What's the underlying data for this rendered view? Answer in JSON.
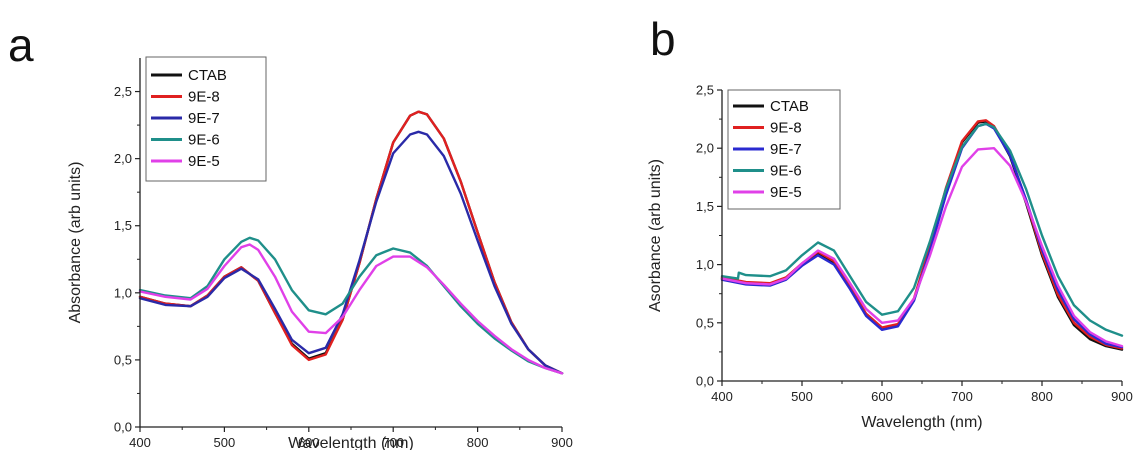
{
  "chart_data": [
    {
      "type": "line",
      "panel": "a",
      "xlabel": "Wavelentgth (nm)",
      "ylabel": "Absorbance (arb units)",
      "xlim": [
        400,
        900
      ],
      "ylim": [
        0.0,
        2.75
      ],
      "xticks": [
        "400",
        "500",
        "600",
        "700",
        "800",
        "900"
      ],
      "yticks": [
        "0,0",
        "0,5",
        "1,0",
        "1,5",
        "2,0",
        "2,5"
      ],
      "legend_position": "top-left",
      "series": [
        {
          "name": "CTAB",
          "color": "#111111",
          "x": [
            400,
            430,
            460,
            480,
            500,
            520,
            540,
            560,
            580,
            600,
            620,
            640,
            660,
            680,
            700,
            720,
            730,
            740,
            760,
            780,
            800,
            820,
            840,
            860,
            880,
            900
          ],
          "y": [
            0.97,
            0.92,
            0.9,
            0.98,
            1.12,
            1.19,
            1.09,
            0.85,
            0.62,
            0.51,
            0.55,
            0.8,
            1.22,
            1.7,
            2.12,
            2.32,
            2.35,
            2.33,
            2.15,
            1.83,
            1.45,
            1.08,
            0.78,
            0.58,
            0.46,
            0.4
          ]
        },
        {
          "name": "9E-8",
          "color": "#e02020",
          "x": [
            400,
            430,
            460,
            480,
            500,
            520,
            540,
            560,
            580,
            600,
            620,
            640,
            660,
            680,
            700,
            720,
            730,
            740,
            760,
            780,
            800,
            820,
            840,
            860,
            880,
            900
          ],
          "y": [
            0.97,
            0.92,
            0.9,
            0.98,
            1.12,
            1.19,
            1.09,
            0.85,
            0.61,
            0.5,
            0.54,
            0.8,
            1.22,
            1.7,
            2.12,
            2.32,
            2.35,
            2.33,
            2.15,
            1.83,
            1.45,
            1.08,
            0.78,
            0.58,
            0.46,
            0.4
          ]
        },
        {
          "name": "9E-7",
          "color": "#2a2aa8",
          "x": [
            400,
            430,
            460,
            480,
            500,
            520,
            540,
            560,
            580,
            600,
            620,
            640,
            660,
            680,
            700,
            720,
            730,
            740,
            760,
            780,
            800,
            820,
            840,
            860,
            880,
            900
          ],
          "y": [
            0.96,
            0.91,
            0.9,
            0.97,
            1.11,
            1.18,
            1.1,
            0.88,
            0.65,
            0.55,
            0.59,
            0.84,
            1.24,
            1.68,
            2.04,
            2.18,
            2.2,
            2.18,
            2.02,
            1.74,
            1.39,
            1.05,
            0.77,
            0.58,
            0.46,
            0.4
          ]
        },
        {
          "name": "9E-6",
          "color": "#1f8f8a",
          "x": [
            400,
            430,
            460,
            480,
            500,
            520,
            530,
            540,
            560,
            580,
            600,
            620,
            640,
            660,
            680,
            700,
            720,
            740,
            760,
            780,
            800,
            820,
            840,
            860,
            880,
            900
          ],
          "y": [
            1.02,
            0.98,
            0.96,
            1.05,
            1.25,
            1.38,
            1.41,
            1.39,
            1.25,
            1.02,
            0.87,
            0.84,
            0.92,
            1.12,
            1.28,
            1.33,
            1.3,
            1.2,
            1.05,
            0.9,
            0.77,
            0.66,
            0.57,
            0.49,
            0.44,
            0.4
          ]
        },
        {
          "name": "9E-5",
          "color": "#e040e8",
          "x": [
            400,
            430,
            460,
            480,
            500,
            520,
            530,
            540,
            560,
            580,
            600,
            620,
            640,
            660,
            680,
            700,
            720,
            740,
            760,
            780,
            800,
            820,
            840,
            860,
            880,
            900
          ],
          "y": [
            1.01,
            0.97,
            0.95,
            1.03,
            1.2,
            1.34,
            1.36,
            1.32,
            1.12,
            0.86,
            0.71,
            0.7,
            0.82,
            1.02,
            1.2,
            1.27,
            1.27,
            1.19,
            1.06,
            0.92,
            0.79,
            0.68,
            0.58,
            0.5,
            0.44,
            0.4
          ]
        }
      ]
    },
    {
      "type": "line",
      "panel": "b",
      "xlabel": "Wavelength (nm)",
      "ylabel": "Asorbance (arb units)",
      "xlim": [
        400,
        900
      ],
      "ylim": [
        0.0,
        2.5
      ],
      "xticks": [
        "400",
        "500",
        "600",
        "700",
        "800",
        "900"
      ],
      "yticks": [
        "0,0",
        "0,5",
        "1,0",
        "1,5",
        "2,0",
        "2,5"
      ],
      "legend_position": "top-left",
      "series": [
        {
          "name": "CTAB",
          "color": "#111111",
          "x": [
            400,
            430,
            460,
            480,
            500,
            520,
            540,
            560,
            580,
            600,
            620,
            640,
            660,
            680,
            700,
            720,
            730,
            740,
            760,
            780,
            800,
            820,
            840,
            860,
            880,
            900
          ],
          "y": [
            0.88,
            0.84,
            0.83,
            0.88,
            1.0,
            1.1,
            1.02,
            0.8,
            0.57,
            0.45,
            0.48,
            0.7,
            1.15,
            1.65,
            2.05,
            2.22,
            2.23,
            2.18,
            1.93,
            1.53,
            1.08,
            0.72,
            0.48,
            0.36,
            0.3,
            0.27
          ]
        },
        {
          "name": "9E-8",
          "color": "#e02020",
          "x": [
            400,
            430,
            460,
            480,
            500,
            520,
            540,
            560,
            580,
            600,
            620,
            640,
            660,
            680,
            700,
            720,
            730,
            740,
            760,
            780,
            800,
            820,
            840,
            860,
            880,
            900
          ],
          "y": [
            0.89,
            0.85,
            0.84,
            0.89,
            1.01,
            1.11,
            1.03,
            0.81,
            0.58,
            0.46,
            0.49,
            0.71,
            1.16,
            1.66,
            2.06,
            2.23,
            2.24,
            2.19,
            1.95,
            1.55,
            1.1,
            0.74,
            0.5,
            0.38,
            0.31,
            0.28
          ]
        },
        {
          "name": "9E-7",
          "color": "#2a2ad0",
          "x": [
            400,
            430,
            460,
            480,
            500,
            520,
            540,
            560,
            580,
            600,
            620,
            640,
            660,
            680,
            700,
            720,
            730,
            740,
            760,
            780,
            800,
            820,
            840,
            860,
            880,
            900
          ],
          "y": [
            0.87,
            0.83,
            0.82,
            0.87,
            0.99,
            1.08,
            1.0,
            0.79,
            0.56,
            0.44,
            0.47,
            0.69,
            1.12,
            1.6,
            2.0,
            2.19,
            2.21,
            2.17,
            1.94,
            1.56,
            1.13,
            0.78,
            0.53,
            0.4,
            0.32,
            0.29
          ]
        },
        {
          "name": "9E-6",
          "color": "#1f8f8a",
          "x": [
            400,
            420,
            421,
            430,
            460,
            480,
            500,
            520,
            540,
            560,
            580,
            600,
            620,
            640,
            660,
            680,
            700,
            720,
            730,
            740,
            760,
            780,
            800,
            820,
            840,
            860,
            880,
            900
          ],
          "y": [
            0.9,
            0.88,
            0.93,
            0.91,
            0.9,
            0.95,
            1.08,
            1.19,
            1.12,
            0.9,
            0.68,
            0.57,
            0.6,
            0.8,
            1.2,
            1.65,
            2.01,
            2.19,
            2.21,
            2.18,
            1.98,
            1.65,
            1.25,
            0.9,
            0.65,
            0.52,
            0.44,
            0.39
          ]
        },
        {
          "name": "9E-5",
          "color": "#e040e8",
          "x": [
            400,
            430,
            460,
            480,
            500,
            520,
            540,
            560,
            580,
            600,
            620,
            640,
            660,
            680,
            700,
            720,
            740,
            760,
            780,
            800,
            820,
            840,
            860,
            880,
            900
          ],
          "y": [
            0.88,
            0.84,
            0.83,
            0.88,
            1.01,
            1.12,
            1.05,
            0.84,
            0.62,
            0.5,
            0.52,
            0.71,
            1.08,
            1.5,
            1.84,
            1.99,
            2.0,
            1.85,
            1.54,
            1.16,
            0.82,
            0.56,
            0.42,
            0.34,
            0.3
          ]
        }
      ]
    }
  ]
}
